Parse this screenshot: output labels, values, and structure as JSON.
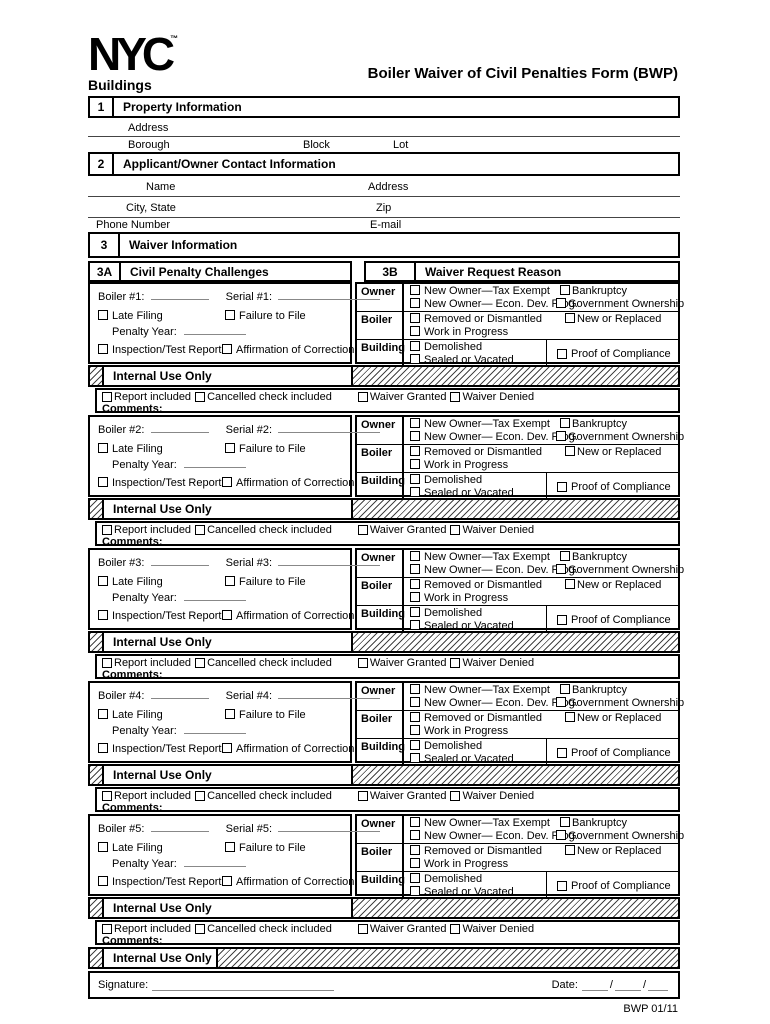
{
  "header": {
    "logo_text": "NYC",
    "logo_tm": "™",
    "logo_sub": "Buildings",
    "title": "Boiler Waiver of Civil Penalties Form (BWP)"
  },
  "sections": {
    "s1": {
      "num": "1",
      "title": "Property Information"
    },
    "s2": {
      "num": "2",
      "title": "Applicant/Owner Contact Information"
    },
    "s3": {
      "num": "3",
      "title": "Waiver Information"
    },
    "s3a": {
      "num": "3A",
      "title": "Civil Penalty Challenges"
    },
    "s3b": {
      "num": "3B",
      "title": "Waiver Request Reason"
    }
  },
  "property_fields": {
    "address": "Address",
    "borough": "Borough",
    "block": "Block",
    "lot": "Lot"
  },
  "contact_fields": {
    "name": "Name",
    "address": "Address",
    "city_state": "City, State",
    "zip": "Zip",
    "phone": "Phone Number",
    "email": "E-mail"
  },
  "block_labels": {
    "late_filing": "Late Filing",
    "failure_to_file": "Failure to File",
    "penalty_year": "Penalty Year:",
    "inspection": "Inspection/Test Report",
    "affirmation": "Affirmation of Correction",
    "owner": "Owner",
    "boiler": "Boiler",
    "building": "Building",
    "new_owner_tax": "New Owner—Tax Exempt",
    "bankruptcy": "Bankruptcy",
    "new_owner_econ": "New Owner— Econ. Dev. Prog.",
    "gov_ownership": "Government Ownership",
    "removed": "Removed or Dismantled",
    "new_replaced": "New or Replaced",
    "work_progress": "Work in Progress",
    "demolished": "Demolished",
    "sealed": "Sealed or Vacated",
    "proof": "Proof of Compliance",
    "internal_use": "Internal Use Only",
    "report_included": "Report included",
    "cancelled_check": "Cancelled check included",
    "waiver_granted": "Waiver Granted",
    "waiver_denied": "Waiver Denied",
    "comments": "Comments:"
  },
  "blocks": [
    {
      "boiler_label": "Boiler #1:",
      "serial_label": "Serial #1:"
    },
    {
      "boiler_label": "Boiler #2:",
      "serial_label": "Serial #2:"
    },
    {
      "boiler_label": "Boiler #3:",
      "serial_label": "Serial #3:"
    },
    {
      "boiler_label": "Boiler #4:",
      "serial_label": "Serial #4:"
    },
    {
      "boiler_label": "Boiler #5:",
      "serial_label": "Serial #5:"
    }
  ],
  "footer": {
    "internal_use": "Internal Use Only",
    "signature_label": "Signature:",
    "date_label": "Date:",
    "form_code": "BWP 01/11"
  }
}
